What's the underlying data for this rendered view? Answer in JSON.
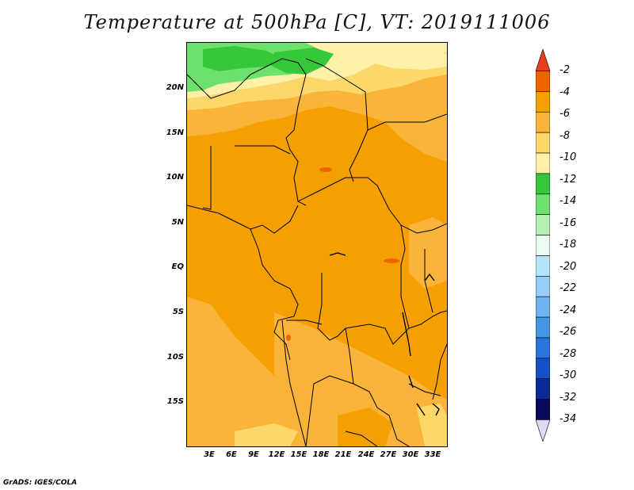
{
  "title": "Temperature at 500hPa [C], VT: 2019111006",
  "footer": "GrADS: IGES/COLA",
  "map": {
    "lat_labels": [
      "20N",
      "15N",
      "10N",
      "5N",
      "EQ",
      "5S",
      "10S",
      "15S"
    ],
    "lon_labels": [
      "3E",
      "6E",
      "9E",
      "12E",
      "15E",
      "18E",
      "21E",
      "24E",
      "27E",
      "30E",
      "33E"
    ]
  },
  "legend": {
    "labels": [
      "-2",
      "-4",
      "-6",
      "-8",
      "-10",
      "-12",
      "-14",
      "-16",
      "-18",
      "-20",
      "-22",
      "-24",
      "-26",
      "-28",
      "-30",
      "-32",
      "-34"
    ],
    "colors": [
      "#e8401a",
      "#f06400",
      "#f5a000",
      "#fab43a",
      "#fcd86b",
      "#fff2a8",
      "#36c73a",
      "#6ee16c",
      "#b4f0b0",
      "#e8fcf0",
      "#b4e4fa",
      "#94cef8",
      "#6eb4f0",
      "#4696e8",
      "#2a74dc",
      "#1450c8",
      "#0a2a96",
      "#0a0a5a",
      "#dcdcf5"
    ]
  }
}
